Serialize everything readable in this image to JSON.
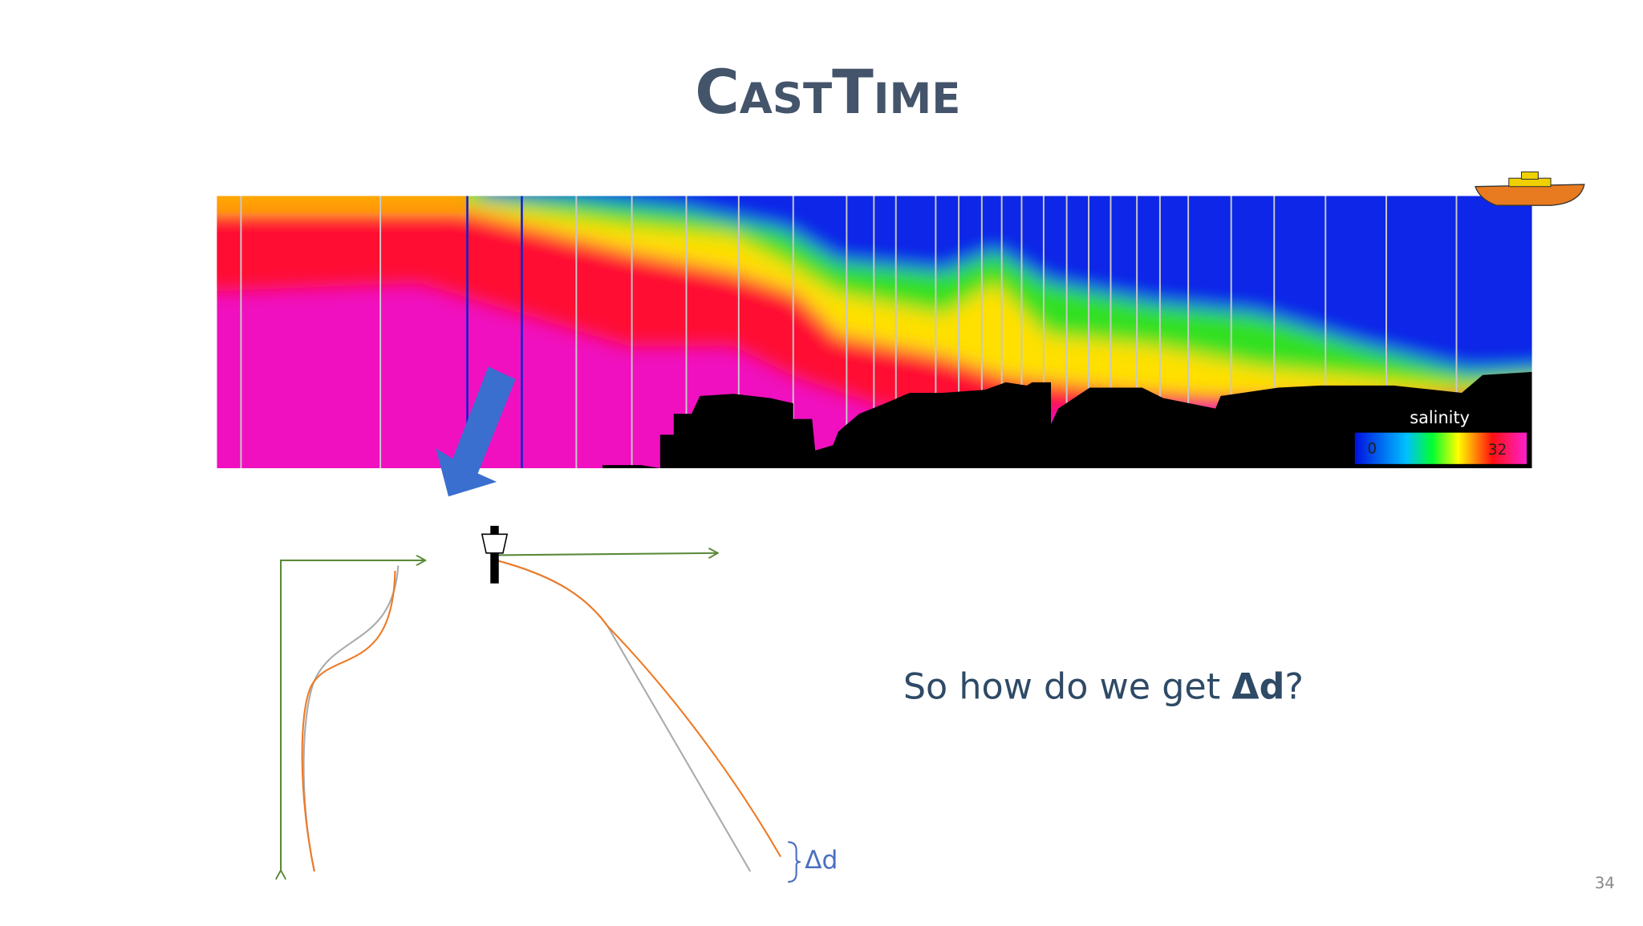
{
  "slide": {
    "title": "CastTime",
    "figure": {
      "legend_title": "salinity",
      "legend_min": 0,
      "legend_max": 32
    },
    "diagram": {
      "delta_label": "Δd"
    },
    "question": {
      "start": "So how do we get ",
      "bold": "Δd",
      "end": "?"
    },
    "page_number": 34
  }
}
